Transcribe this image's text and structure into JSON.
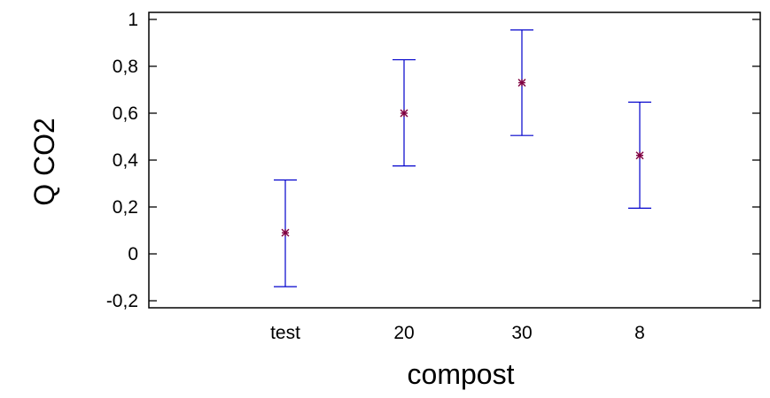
{
  "chart_data": {
    "type": "errorbar",
    "title": "",
    "xlabel": "compost",
    "ylabel": "Q CO2",
    "categories": [
      "test",
      "20",
      "30",
      "8"
    ],
    "series": [
      {
        "mean": [
          0.09,
          0.6,
          0.73,
          0.42
        ],
        "lower": [
          -0.14,
          0.375,
          0.505,
          0.195
        ],
        "upper": [
          0.315,
          0.828,
          0.955,
          0.647
        ]
      }
    ],
    "ylim": [
      -0.23,
      1.03
    ],
    "yticks": [
      -0.2,
      0,
      0.2,
      0.4,
      0.6,
      0.8,
      1
    ],
    "ytick_labels": [
      "-0,2",
      "0",
      "0,2",
      "0,4",
      "0,6",
      "0,8",
      "1"
    ],
    "grid": false,
    "colors": {
      "error_bar": "#0000cc",
      "marker": "#800040",
      "axis": "#000000"
    }
  }
}
